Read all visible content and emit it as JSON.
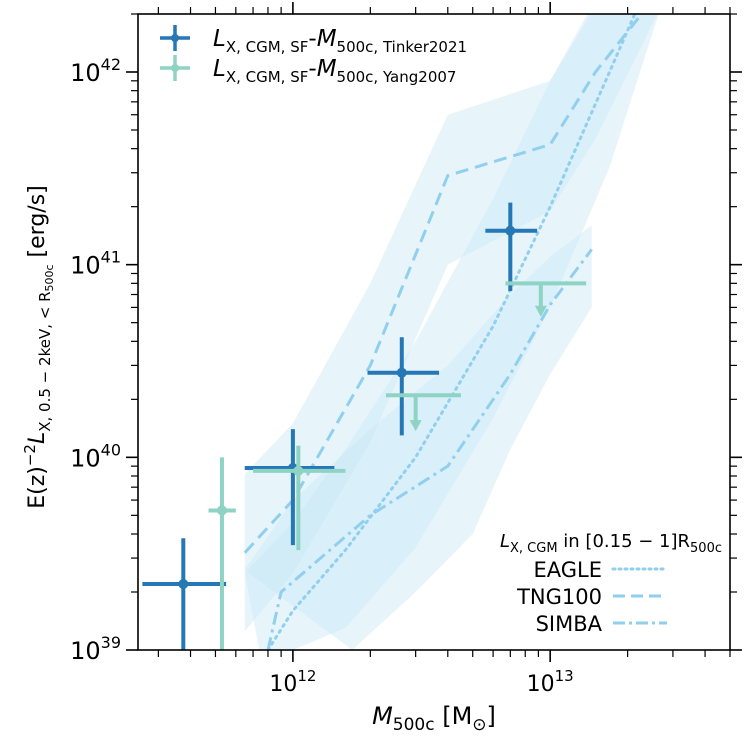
{
  "chart_data": {
    "type": "scatter",
    "x_scale": "log",
    "y_scale": "log",
    "xlim": [
      250000000000,
      50000000000000
    ],
    "ylim": [
      1e+39,
      2e+42
    ],
    "x_major_ticks": [
      {
        "value": 1000000000000.0,
        "base": "10",
        "exp": "12"
      },
      {
        "value": 10000000000000.0,
        "base": "10",
        "exp": "13"
      }
    ],
    "y_major_ticks": [
      {
        "value": 1e+39,
        "base": "10",
        "exp": "39"
      },
      {
        "value": 1e+40,
        "base": "10",
        "exp": "40"
      },
      {
        "value": 1e+41,
        "base": "10",
        "exp": "41"
      },
      {
        "value": 1e+42,
        "base": "10",
        "exp": "42"
      }
    ],
    "xlabel": {
      "M": "M",
      "sub": "500c",
      "rest": " [M",
      "sun": "⊙",
      "close": "]"
    },
    "ylabel": {
      "pre": "E(z)",
      "sup": "−2",
      "L": "L",
      "sub": "X, 0.5 − 2keV, < R",
      "subsub": "500c",
      "post": " [erg/s]"
    },
    "colors": {
      "tinker": "#2577b5",
      "yang": "#8fd3c4",
      "sim": "#91cfee",
      "band": "#c6e6f6"
    },
    "series": [
      {
        "name": "Tinker2021",
        "legend": {
          "L": "L",
          "sub": "X, CGM, SF",
          "mid": "-",
          "M": "M",
          "msub": "500c, Tinker2021"
        },
        "color": "#2577b5",
        "points": [
          {
            "x": 375000000000.0,
            "y": 2.2e+39,
            "xlo": 260000000000.0,
            "xhi": 550000000000.0,
            "ylo": 1e+39,
            "yhi": 3.8e+39,
            "upper_limit": false
          },
          {
            "x": 1000000000000.0,
            "y": 8.8e+39,
            "xlo": 650000000000.0,
            "xhi": 1450000000000.0,
            "ylo": 3.5e+39,
            "yhi": 1.4e+40,
            "upper_limit": false
          },
          {
            "x": 2650000000000.0,
            "y": 2.75e+40,
            "xlo": 1950000000000.0,
            "xhi": 3700000000000.0,
            "ylo": 1.3e+40,
            "yhi": 4.2e+40,
            "upper_limit": false
          },
          {
            "x": 7000000000000.0,
            "y": 1.5e+41,
            "xlo": 5600000000000.0,
            "xhi": 8900000000000.0,
            "ylo": 7.3e+40,
            "yhi": 2.1e+41,
            "upper_limit": false
          }
        ]
      },
      {
        "name": "Yang2007",
        "legend": {
          "L": "L",
          "sub": "X, CGM, SF",
          "mid": "-",
          "M": "M",
          "msub": "500c, Yang2007"
        },
        "color": "#8fd3c4",
        "points": [
          {
            "x": 530000000000.0,
            "y": 5.3e+39,
            "xlo": 470000000000.0,
            "xhi": 600000000000.0,
            "ylo": 1e+39,
            "yhi": 1e+40,
            "upper_limit": false
          },
          {
            "x": 1050000000000.0,
            "y": 8.5e+39,
            "xlo": 700000000000.0,
            "xhi": 1600000000000.0,
            "ylo": 3.3e+39,
            "yhi": 1.15e+40,
            "upper_limit": false
          },
          {
            "x": 3000000000000.0,
            "y": 2.1e+40,
            "xlo": 2300000000000.0,
            "xhi": 4500000000000.0,
            "ylo": 1.4e+40,
            "yhi": 2.1e+40,
            "upper_limit": true
          },
          {
            "x": 9200000000000.0,
            "y": 8e+40,
            "xlo": 6700000000000.0,
            "xhi": 13800000000000.0,
            "ylo": 5.5e+40,
            "yhi": 8e+40,
            "upper_limit": true
          }
        ]
      }
    ],
    "simulations": [
      {
        "name": "EAGLE",
        "style": "dotted",
        "line": [
          [
            800000000000.0,
            1e+39
          ],
          [
            1000000000000.0,
            1.6e+39
          ],
          [
            1600000000000.0,
            3.3e+39
          ],
          [
            3000000000000.0,
            1e+40
          ],
          [
            6000000000000.0,
            4.8e+40
          ],
          [
            10000000000000.0,
            2e+41
          ],
          [
            17000000000000.0,
            1e+42
          ],
          [
            22000000000000.0,
            2.2e+42
          ]
        ],
        "band_upper": [
          [
            650000000000.0,
            2.5e+39
          ],
          [
            1000000000000.0,
            4.6e+39
          ],
          [
            1600000000000.0,
            1.1e+40
          ],
          [
            3000000000000.0,
            4e+40
          ],
          [
            6000000000000.0,
            2.2e+41
          ],
          [
            10000000000000.0,
            9e+41
          ],
          [
            14500000000000.0,
            2.2e+42
          ]
        ],
        "band_lower": [
          [
            740000000000.0,
            1e+39
          ],
          [
            1000000000000.0,
            1e+39
          ],
          [
            1600000000000.0,
            1.3e+39
          ],
          [
            3000000000000.0,
            3.4e+39
          ],
          [
            6000000000000.0,
            1.6e+40
          ],
          [
            10000000000000.0,
            6e+40
          ],
          [
            17000000000000.0,
            3.2e+41
          ],
          [
            27000000000000.0,
            2.2e+42
          ]
        ]
      },
      {
        "name": "TNG100",
        "style": "dashed",
        "line": [
          [
            650000000000.0,
            3.2e+39
          ],
          [
            1000000000000.0,
            6e+39
          ],
          [
            2000000000000.0,
            3e+40
          ],
          [
            4000000000000.0,
            2.9e+41
          ],
          [
            10000000000000.0,
            4.2e+41
          ],
          [
            15000000000000.0,
            1e+42
          ],
          [
            24000000000000.0,
            2.2e+42
          ]
        ],
        "band_upper": [
          [
            650000000000.0,
            8.2e+39
          ],
          [
            1000000000000.0,
            1.5e+40
          ],
          [
            2000000000000.0,
            8e+40
          ],
          [
            4000000000000.0,
            6e+41
          ],
          [
            10000000000000.0,
            9e+41
          ],
          [
            15000000000000.0,
            2.2e+42
          ]
        ],
        "band_lower": [
          [
            650000000000.0,
            1.25e+39
          ],
          [
            1000000000000.0,
            2.5e+39
          ],
          [
            2000000000000.0,
            1.2e+40
          ],
          [
            4000000000000.0,
            1e+41
          ],
          [
            10000000000000.0,
            1.9e+41
          ],
          [
            15000000000000.0,
            4.5e+41
          ],
          [
            27000000000000.0,
            2.2e+42
          ]
        ]
      },
      {
        "name": "SIMBA",
        "style": "dashdot",
        "line": [
          [
            800000000000.0,
            1e+39
          ],
          [
            900000000000.0,
            2e+39
          ],
          [
            2000000000000.0,
            5e+39
          ],
          [
            4000000000000.0,
            9e+39
          ],
          [
            7000000000000.0,
            2.7e+40
          ],
          [
            10000000000000.0,
            6.2e+40
          ],
          [
            14500000000000.0,
            1.2e+41
          ]
        ],
        "band_upper": [
          [
            650000000000.0,
            2.6e+39
          ],
          [
            1000000000000.0,
            6e+39
          ],
          [
            2000000000000.0,
            1.4e+40
          ],
          [
            4000000000000.0,
            3e+40
          ],
          [
            7000000000000.0,
            7e+40
          ],
          [
            10000000000000.0,
            1.1e+41
          ],
          [
            14500000000000.0,
            1.6e+41
          ]
        ],
        "band_lower": [
          [
            1700000000000.0,
            1e+39
          ],
          [
            3000000000000.0,
            2e+39
          ],
          [
            5000000000000.0,
            4e+39
          ],
          [
            7000000000000.0,
            1.1e+40
          ],
          [
            10000000000000.0,
            2.7e+40
          ],
          [
            14500000000000.0,
            6e+40
          ]
        ]
      }
    ],
    "sim_legend": {
      "title": {
        "L": "L",
        "sub": "X, CGM",
        "text": " in [0.15 − 1]R",
        "rsub": "500c"
      },
      "items": [
        "EAGLE",
        "TNG100",
        "SIMBA"
      ]
    }
  }
}
